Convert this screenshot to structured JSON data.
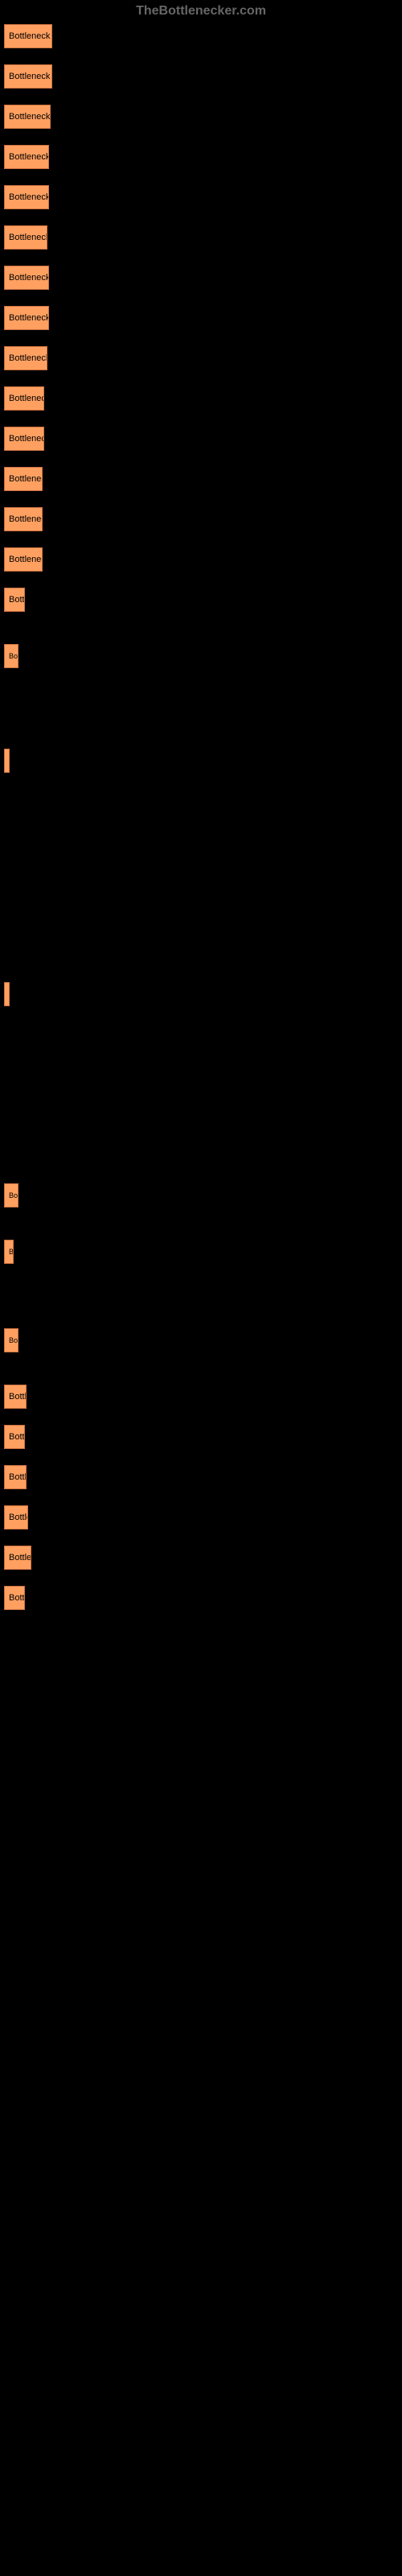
{
  "watermark": "TheBottlenecker.com",
  "chart": {
    "type": "bar",
    "background_color": "#000000",
    "bar_color": "#ffa060",
    "bar_border_color": "#cc7040",
    "text_color": "#000000",
    "bars": [
      {
        "width": 60,
        "label": "Bottleneck re"
      },
      {
        "width": 60,
        "label": "Bottleneck re"
      },
      {
        "width": 58,
        "label": "Bottleneck re"
      },
      {
        "width": 56,
        "label": "Bottleneck r"
      },
      {
        "width": 56,
        "label": "Bottleneck r"
      },
      {
        "width": 54,
        "label": "Bottleneck r"
      },
      {
        "width": 56,
        "label": "Bottleneck r"
      },
      {
        "width": 56,
        "label": "Bottleneck r"
      },
      {
        "width": 54,
        "label": "Bottleneck r"
      },
      {
        "width": 50,
        "label": "Bottleneck"
      },
      {
        "width": 50,
        "label": "Bottleneck"
      },
      {
        "width": 48,
        "label": "Bottlenec"
      },
      {
        "width": 48,
        "label": "Bottlenec"
      },
      {
        "width": 48,
        "label": "Bottlenec"
      },
      {
        "width": 26,
        "label": "Bottl"
      },
      {
        "width": 18,
        "label": "Bo"
      },
      {
        "width": 3,
        "label": ""
      },
      {
        "width": 6,
        "label": ""
      },
      {
        "width": 18,
        "label": "Bo"
      },
      {
        "width": 12,
        "label": "B"
      },
      {
        "width": 18,
        "label": "Bo"
      },
      {
        "width": 28,
        "label": "Bottle"
      },
      {
        "width": 26,
        "label": "Bottl"
      },
      {
        "width": 28,
        "label": "Bottle"
      },
      {
        "width": 30,
        "label": "Bottle"
      },
      {
        "width": 34,
        "label": "Bottler"
      },
      {
        "width": 26,
        "label": "Bottl"
      }
    ],
    "gaps": [
      {
        "after_index": 14,
        "gap_height": 20
      },
      {
        "after_index": 15,
        "gap_height": 80
      },
      {
        "after_index": 16,
        "gap_height": 240
      },
      {
        "after_index": 17,
        "gap_height": 200
      },
      {
        "after_index": 18,
        "gap_height": 20
      },
      {
        "after_index": 19,
        "gap_height": 60
      },
      {
        "after_index": 20,
        "gap_height": 20
      }
    ]
  }
}
